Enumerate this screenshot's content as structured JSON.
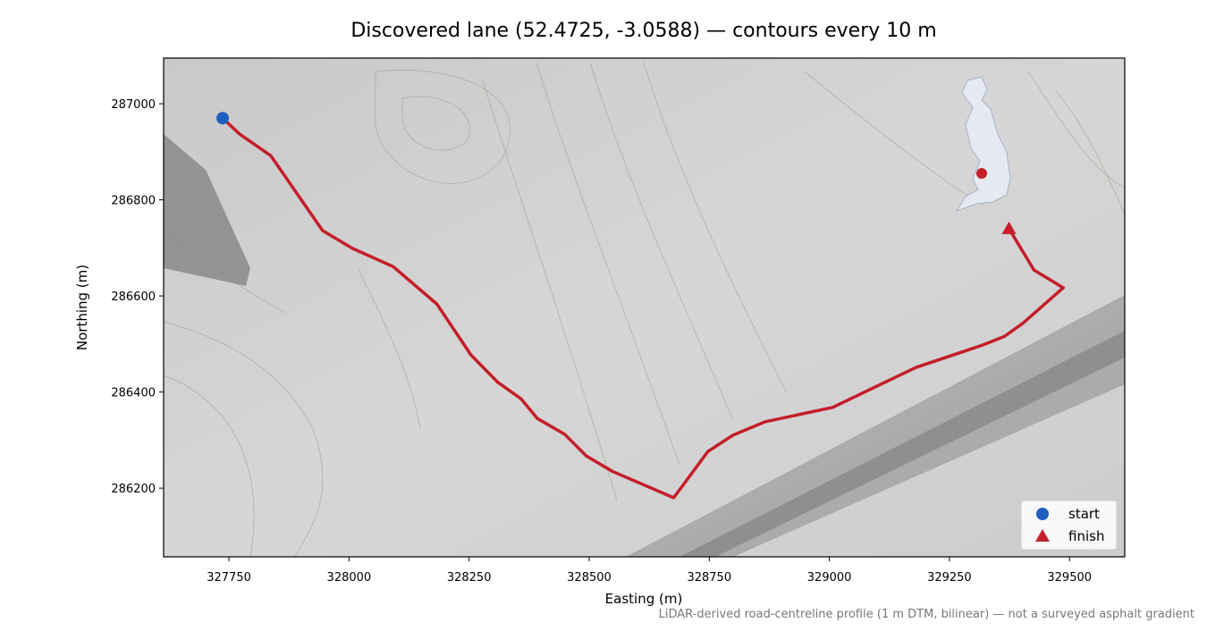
{
  "chart_data": {
    "type": "line",
    "title": "Discovered lane (52.4725, -3.0588) — contours every 10 m",
    "xlabel": "Easting (m)",
    "ylabel": "Northing (m)",
    "note": "LiDAR-derived road-centreline profile (1 m DTM, bilinear) — not a surveyed asphalt gradient",
    "color": "#c41e2a",
    "x": [
      327737,
      327772,
      327837,
      327945,
      328007,
      328092,
      328183,
      328254,
      328310,
      328358,
      328392,
      328449,
      328494,
      328548,
      328676,
      328747,
      328799,
      328866,
      329007,
      329180,
      329320,
      329365,
      329404,
      329487,
      329426,
      329374
    ],
    "values": [
      286970,
      286937,
      286892,
      286736,
      286699,
      286661,
      286583,
      286477,
      286420,
      286386,
      286345,
      286312,
      286267,
      286235,
      286180,
      286276,
      286310,
      286338,
      286368,
      286451,
      286498,
      286516,
      286544,
      286617,
      286654,
      286740
    ],
    "markers": [
      {
        "name": "start",
        "shape": "circle",
        "color": "#1f5fbf",
        "x": 327737,
        "y": 286970
      },
      {
        "name": "finish",
        "shape": "triangle",
        "color": "#c41e2a",
        "x": 329374,
        "y": 286740
      }
    ],
    "xlim": [
      327614,
      329615
    ],
    "ylim": [
      286057,
      287095
    ],
    "xticks": [
      327750,
      328000,
      328250,
      328500,
      328750,
      329000,
      329250,
      329500
    ],
    "yticks": [
      286200,
      286400,
      286600,
      286800,
      287000
    ],
    "legend": "lower right"
  }
}
